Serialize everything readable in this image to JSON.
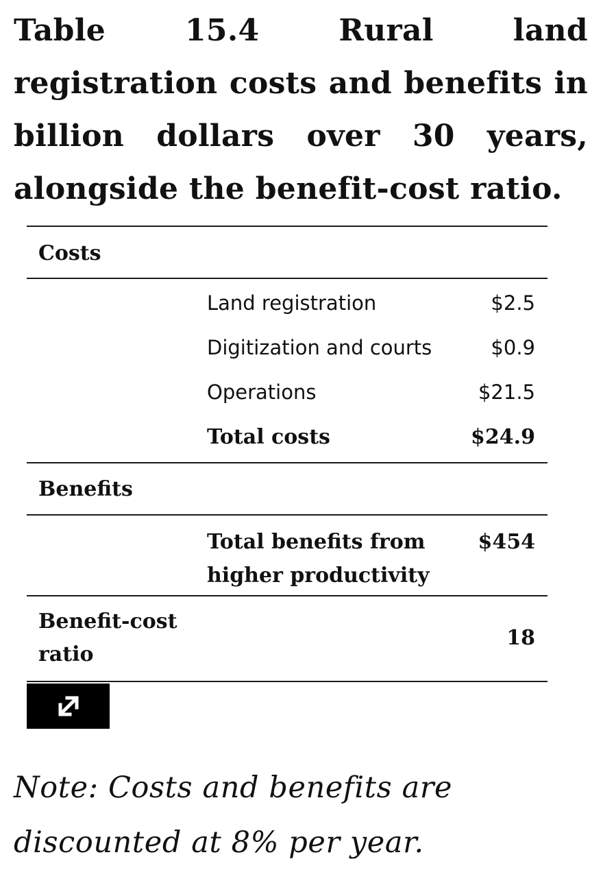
{
  "title": "Table 15.4 Rural land registration costs and benefits in billion dollars over 30 years, alongside the benefit-cost ratio.",
  "table": {
    "costs_heading": "Costs",
    "cost_rows": [
      {
        "label": "Land registration",
        "value": "$2.5"
      },
      {
        "label": "Digitization and courts",
        "value": "$0.9"
      },
      {
        "label": "Operations",
        "value": "$21.5"
      },
      {
        "label": "Total costs",
        "value": "$24.9"
      }
    ],
    "benefits_heading": "Benefits",
    "benefit_row": {
      "label": "Total benefits from higher productivity",
      "value": "$454"
    },
    "ratio_row": {
      "label": "Benefit-cost ratio",
      "value": "18"
    }
  },
  "expand_button": {
    "icon": "expand-arrows-icon"
  },
  "note": "Note: Costs and benefits are discounted at 8% per year."
}
